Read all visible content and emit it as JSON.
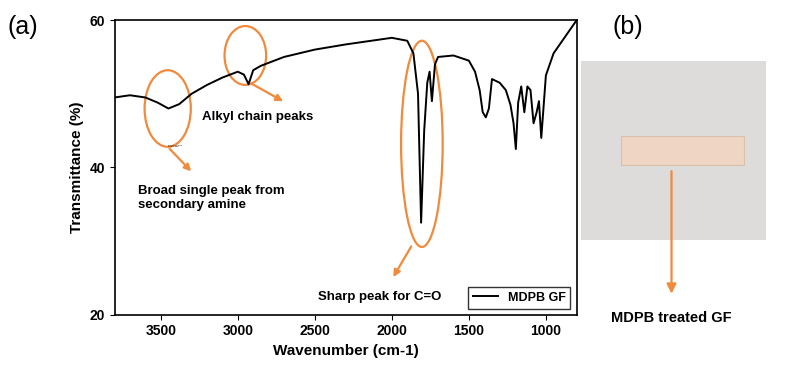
{
  "chart_data": {
    "type": "line",
    "panel_label": "(a)",
    "x_label": "Wavenumber (cm-1)",
    "y_label": "Transmittance (%)",
    "x": [
      3800,
      3700,
      3600,
      3520,
      3450,
      3380,
      3300,
      3200,
      3100,
      3000,
      2960,
      2930,
      2900,
      2850,
      2700,
      2500,
      2300,
      2100,
      2000,
      1900,
      1860,
      1830,
      1810,
      1790,
      1770,
      1755,
      1740,
      1720,
      1700,
      1600,
      1500,
      1460,
      1430,
      1410,
      1390,
      1370,
      1350,
      1300,
      1260,
      1230,
      1210,
      1195,
      1180,
      1160,
      1140,
      1120,
      1100,
      1080,
      1060,
      1045,
      1030,
      1000,
      950,
      900,
      850,
      800
    ],
    "series": [
      {
        "name": "MDPB GF",
        "color": "#000000",
        "values": [
          49.5,
          49.8,
          49.5,
          48.8,
          48.0,
          48.6,
          50.0,
          51.2,
          52.2,
          53.0,
          52.6,
          51.3,
          53.2,
          53.8,
          55.0,
          56.0,
          56.7,
          57.3,
          57.6,
          57.2,
          55.5,
          50.0,
          32.5,
          45.0,
          51.5,
          53.0,
          49.0,
          54.0,
          55.0,
          55.2,
          54.5,
          53.0,
          50.5,
          47.5,
          46.8,
          48.0,
          52.0,
          51.5,
          50.5,
          48.5,
          46.0,
          42.5,
          48.8,
          51.0,
          47.5,
          51.0,
          50.5,
          46.0,
          47.5,
          49.0,
          44.0,
          52.5,
          55.5,
          57.0,
          58.5,
          60.0
        ]
      }
    ],
    "xlim": [
      3800,
      800
    ],
    "xticks": [
      3500,
      3000,
      2500,
      2000,
      1500,
      1000
    ],
    "ylim": [
      20,
      60
    ],
    "yticks": [
      20,
      40,
      60
    ],
    "legend": "lower right",
    "annotations": [
      "Broad single peak from\nsecondary amine",
      "Alkyl chain peaks",
      "Sharp peak for C=O"
    ]
  },
  "panel_b": {
    "panel_label": "(b)",
    "caption": "MDPB treated GF"
  }
}
